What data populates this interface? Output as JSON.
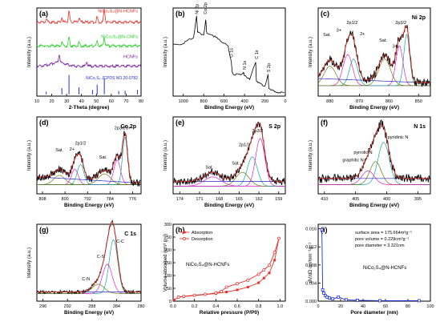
{
  "colors": {
    "red": "#e8302a",
    "green": "#1fd61f",
    "purple": "#7b1fa2",
    "blue": "#1f2fe0",
    "magenta": "#e020d0",
    "navy": "#2a2ac0",
    "olive": "#6a7d10",
    "teal": "#19a39a",
    "black": "#000000"
  },
  "chart_data": [
    {
      "panel": "(a)",
      "type": "line",
      "xlabel": "2-Theta (degree)",
      "ylabel": "Intensity (a.u.)",
      "xlim": [
        10,
        80
      ],
      "xticks": [
        "10",
        "20",
        "30",
        "40",
        "50",
        "60",
        "70",
        "80"
      ],
      "series": [
        {
          "name": "NiCo2S4@N-HCNFs",
          "name_display": "NiCo₂S₄@N-HCNFs",
          "color": "red",
          "baseline": 0.84,
          "peaks": [
            [
              16.3,
              0.04
            ],
            [
              26.8,
              0.05
            ],
            [
              31.6,
              0.12
            ],
            [
              38.3,
              0.05
            ],
            [
              50.5,
              0.06
            ],
            [
              55.3,
              0.14
            ]
          ]
        },
        {
          "name": "NiCo2S4@N-CNFs",
          "name_display": "NiCo₂S₄@N-CNFs",
          "color": "green",
          "baseline": 0.57,
          "peaks": [
            [
              26.8,
              0.04
            ],
            [
              31.6,
              0.1
            ],
            [
              38.3,
              0.04
            ],
            [
              50.5,
              0.05
            ],
            [
              55.3,
              0.1
            ]
          ]
        },
        {
          "name": "HCNFs",
          "name_display": "HCNFs",
          "color": "purple",
          "baseline": 0.34,
          "peaks": [
            [
              25.0,
              0.1
            ],
            [
              43.5,
              0.05
            ]
          ]
        }
      ],
      "reference": {
        "name": "NiCo2S4 JCPDS NO.20-0782",
        "name_display": "NiCo₂S₄ JCPDS NO.20-0782",
        "color": "blue",
        "lines": [
          [
            16.3,
            0.03
          ],
          [
            26.8,
            0.07
          ],
          [
            31.6,
            0.22
          ],
          [
            38.3,
            0.08
          ],
          [
            47.4,
            0.05
          ],
          [
            50.5,
            0.11
          ],
          [
            55.3,
            0.18
          ],
          [
            65.0,
            0.04
          ],
          [
            69.3,
            0.04
          ],
          [
            77.6,
            0.05
          ]
        ]
      }
    },
    {
      "panel": "(b)",
      "type": "line",
      "xlabel": "Binding Energy (eV)",
      "ylabel": "Intensity (a.u.)",
      "xlim": [
        1100,
        0
      ],
      "xticks": [
        "1000",
        "800",
        "600",
        "400",
        "200",
        "0"
      ],
      "series": [
        {
          "name": "survey",
          "color": "black",
          "points": [
            [
              1100,
              0.58
            ],
            [
              1000,
              0.6
            ],
            [
              960,
              0.63
            ],
            [
              900,
              0.67
            ],
            [
              870,
              0.9
            ],
            [
              860,
              0.74
            ],
            [
              855,
              0.72
            ],
            [
              800,
              0.7
            ],
            [
              780,
              0.86
            ],
            [
              770,
              0.72
            ],
            [
              700,
              0.68
            ],
            [
              650,
              0.64
            ],
            [
              600,
              0.6
            ],
            [
              560,
              0.56
            ],
            [
              531,
              0.4
            ],
            [
              520,
              0.26
            ],
            [
              500,
              0.25
            ],
            [
              450,
              0.24
            ],
            [
              410,
              0.27
            ],
            [
              400,
              0.23
            ],
            [
              350,
              0.2
            ],
            [
              290,
              0.38
            ],
            [
              284,
              0.18
            ],
            [
              250,
              0.14
            ],
            [
              200,
              0.12
            ],
            [
              169,
              0.24
            ],
            [
              162,
              0.09
            ],
            [
              120,
              0.06
            ],
            [
              100,
              0.05
            ],
            [
              50,
              0.04
            ],
            [
              0,
              0.03
            ]
          ]
        }
      ],
      "annotations": [
        "Ni 2p",
        "Co 2p",
        "O 1s",
        "N 1s",
        "C 1s",
        "S 2p"
      ]
    },
    {
      "panel": "(c)",
      "type": "line",
      "title": "Ni 2p",
      "xlabel": "Binding Energy (eV)",
      "ylabel": "Intensity (a.u.)",
      "xlim": [
        884,
        846
      ],
      "xticks": [
        "880",
        "870",
        "860",
        "850"
      ],
      "annotations": [
        "Sat.",
        "3+",
        "2+",
        "2p1/2",
        "2p3/2"
      ]
    },
    {
      "panel": "(d)",
      "type": "line",
      "title": "Co 2p",
      "xlabel": "Binding Energy (eV)",
      "ylabel": "Intensity (a.u.)",
      "xlim": [
        810,
        773
      ],
      "xticks": [
        "808",
        "800",
        "792",
        "784",
        "776"
      ],
      "annotations": [
        "Sat.",
        "2+",
        "3+",
        "2p1/2",
        "2p3/2"
      ]
    },
    {
      "panel": "(e)",
      "type": "line",
      "title": "S 2p",
      "xlabel": "Binding Energy (eV)",
      "ylabel": "Intensity (a.u.)",
      "xlim": [
        175,
        158
      ],
      "xticks": [
        "174",
        "171",
        "168",
        "165",
        "162",
        "159"
      ],
      "annotations": [
        "Sat.",
        "Sat.",
        "2p1/2",
        "2p3/2"
      ]
    },
    {
      "panel": "(f)",
      "type": "line",
      "title": "N 1s",
      "xlabel": "Binding Energy (eV)",
      "ylabel": "Intensity (a.u.)",
      "xlim": [
        411,
        393
      ],
      "xticks": [
        "410",
        "405",
        "400",
        "395"
      ],
      "annotations": [
        "pyridinic N",
        "pyrrolic N",
        "graphitic N"
      ]
    },
    {
      "panel": "(g)",
      "type": "line",
      "title": "C 1s",
      "xlabel": "Binding Energy (eV)",
      "ylabel": "Intensity (a.u.)",
      "xlim": [
        297,
        280
      ],
      "xticks": [
        "296",
        "292",
        "288",
        "284",
        "280"
      ],
      "annotations": [
        "C-C",
        "C-S",
        "C-N"
      ]
    },
    {
      "panel": "(h)",
      "type": "line",
      "xlabel": "Relative pressure (P/P0)",
      "ylabel": "Volume absorbed (cm³ g⁻¹)",
      "xlim": [
        0.0,
        1.05
      ],
      "ylim": [
        0,
        300
      ],
      "xticks": [
        "0.0",
        "0.2",
        "0.4",
        "0.6",
        "0.8",
        "1.0"
      ],
      "yticks": [
        "0",
        "50",
        "100",
        "150",
        "200",
        "250",
        "300"
      ],
      "label": "NiCo₂S₄@N-HCNFs",
      "series": [
        {
          "name": "Absorption",
          "color": "red",
          "points": [
            [
              0.01,
              5
            ],
            [
              0.05,
              15
            ],
            [
              0.1,
              18
            ],
            [
              0.2,
              22
            ],
            [
              0.3,
              26
            ],
            [
              0.4,
              30
            ],
            [
              0.5,
              36
            ],
            [
              0.6,
              44
            ],
            [
              0.7,
              55
            ],
            [
              0.8,
              72
            ],
            [
              0.85,
              90
            ],
            [
              0.9,
              110
            ],
            [
              0.95,
              160
            ],
            [
              0.99,
              245
            ]
          ]
        },
        {
          "name": "Desorption",
          "color": "red",
          "points": [
            [
              0.99,
              245
            ],
            [
              0.95,
              190
            ],
            [
              0.9,
              140
            ],
            [
              0.85,
              122
            ],
            [
              0.8,
              105
            ],
            [
              0.7,
              82
            ],
            [
              0.6,
              68
            ],
            [
              0.5,
              55
            ],
            [
              0.45,
              38
            ],
            [
              0.4,
              32
            ],
            [
              0.3,
              27
            ],
            [
              0.2,
              23
            ],
            [
              0.1,
              19
            ],
            [
              0.05,
              16
            ]
          ]
        }
      ]
    },
    {
      "panel": "(i)",
      "type": "line",
      "xlabel": "Pore diameter (nm)",
      "ylabel": "dV/dD cm³nm⁻¹g⁻¹",
      "xlim": [
        0,
        100
      ],
      "ylim": [
        0,
        0.017
      ],
      "xticks": [
        "0",
        "20",
        "40",
        "60",
        "80",
        "100"
      ],
      "yticks": [
        "0.000",
        "0.004",
        "0.008",
        "0.012",
        "0.016"
      ],
      "label": "NiCo₂S₄@N-HCNFs",
      "text_lines": [
        "surface area = 175.664m²g⁻¹",
        "pore volume = 0.229cm³g⁻¹",
        "pore diameter = 3.321nm"
      ],
      "series": [
        {
          "name": "pore distribution",
          "color": "blue",
          "points": [
            [
              3.3,
              0.0158
            ],
            [
              4.0,
              0.0025
            ],
            [
              5.0,
              0.0018
            ],
            [
              6.5,
              0.0012
            ],
            [
              8.0,
              0.0009
            ],
            [
              10,
              0.0007
            ],
            [
              13,
              0.0005
            ],
            [
              18,
              0.0009
            ],
            [
              25,
              0.0003
            ],
            [
              35,
              0.0002
            ],
            [
              55,
              0.0001
            ],
            [
              90,
              0.0001
            ]
          ]
        }
      ]
    }
  ]
}
